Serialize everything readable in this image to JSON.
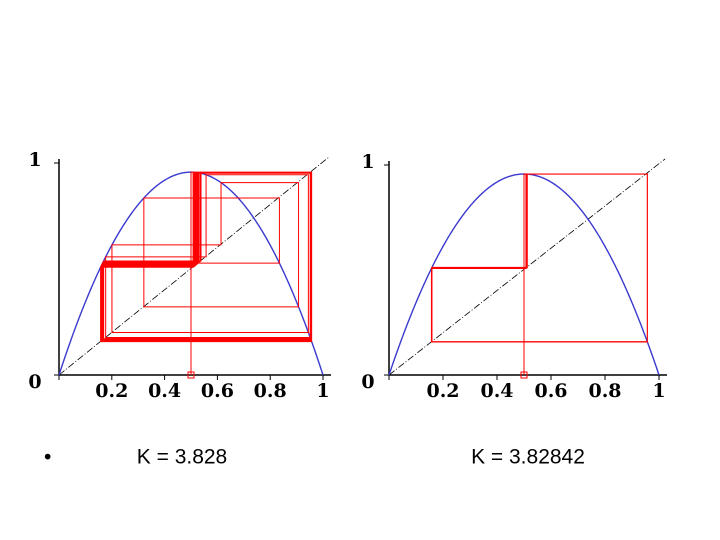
{
  "bullet": "•",
  "chart_data": [
    {
      "type": "cobweb",
      "k": {
        "value": 3.828,
        "label": "K = 3.828"
      },
      "x0": 0.5,
      "iterations": 60,
      "xlim": [
        0,
        1
      ],
      "ylim": [
        0,
        1
      ],
      "xticks": [
        0,
        0.2,
        0.4,
        0.6,
        0.8,
        1
      ],
      "yticks": [
        0,
        1
      ],
      "curve_color": "#3a3ad0",
      "cobweb_color": "#ff0000"
    },
    {
      "type": "cobweb",
      "k": {
        "value": 3.82842,
        "label": "K = 3.82842"
      },
      "x0": 0.5,
      "iterations": 30,
      "xlim": [
        0,
        1
      ],
      "ylim": [
        0,
        1
      ],
      "xticks": [
        0,
        0.2,
        0.4,
        0.6,
        0.8,
        1
      ],
      "yticks": [
        0,
        1
      ],
      "curve_color": "#3a3ad0",
      "cobweb_color": "#ff0000"
    }
  ]
}
